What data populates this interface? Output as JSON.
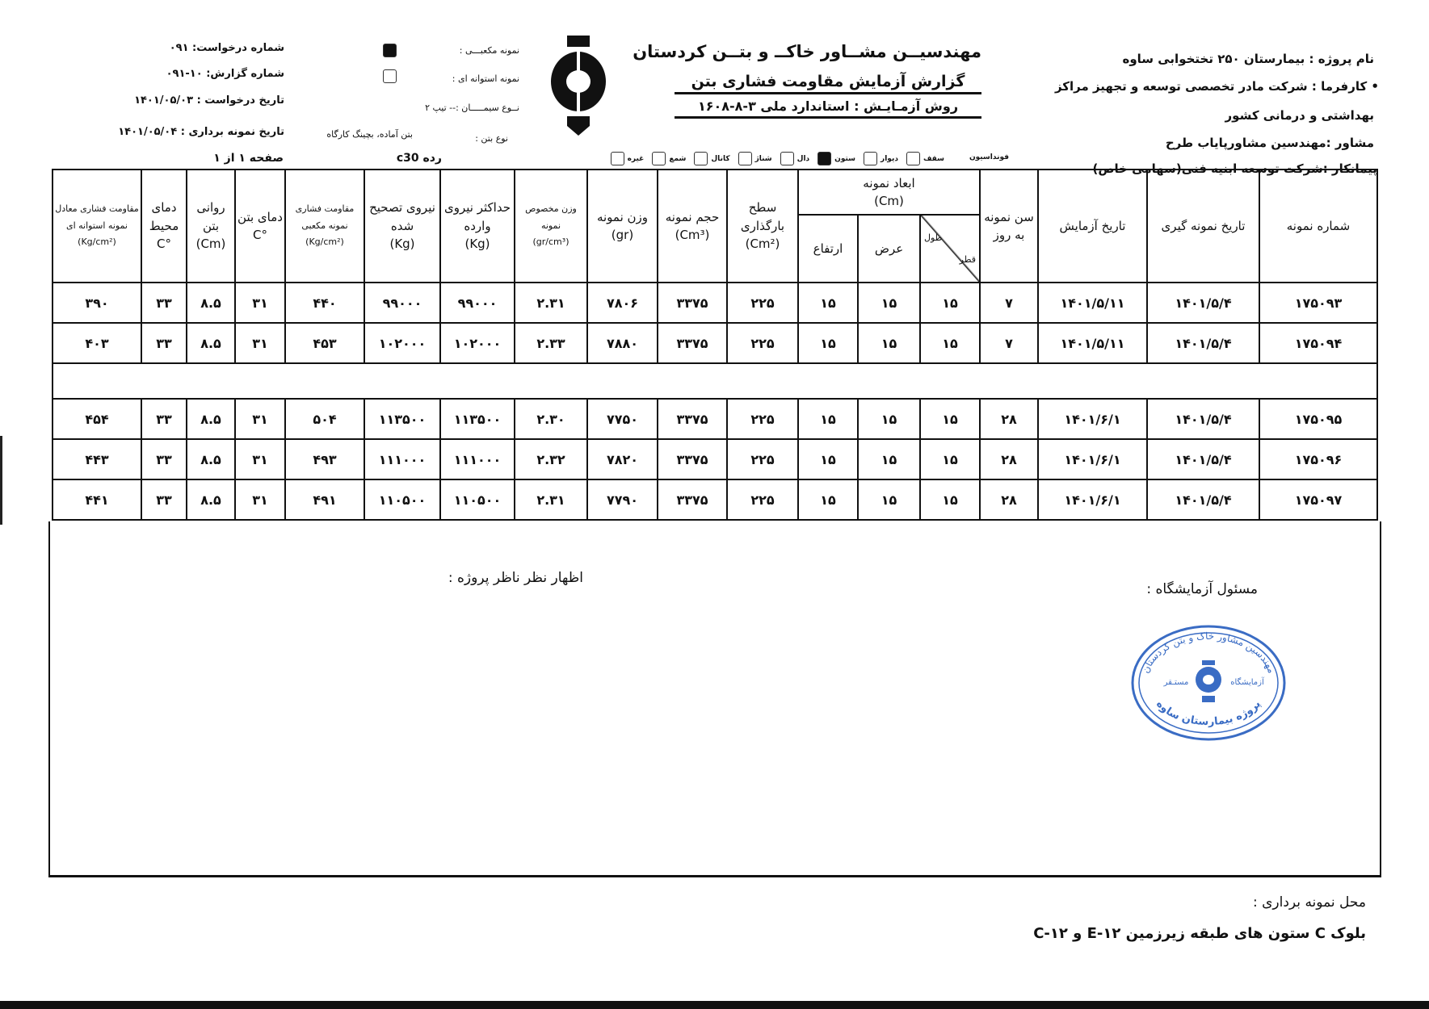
{
  "project_info": {
    "project_name": "نام پروژه : بیمارستان ۲۵۰ تختخوابی ساوه",
    "employer_line1": "• کارفرما : شرکت مادر تخصصی توسعه و تجهیز مراکز",
    "employer_line2": "بهداشتی و درمانی کشور",
    "consultant": "مشاور :مهندسین مشاورپایاب طرح",
    "contractor": "پیمانکار :شرکت توسعه ابنیه فنی(سهامی خاص)"
  },
  "title_block": {
    "company": "مهندسیــن مشــاور خاکــ و بتــن کردستان",
    "report_title": "گزارش آزمایش مقاومت فشاری بتن",
    "method": "روش آزمـایـش : استاندارد ملی ۳-۸-۱۶۰۸"
  },
  "sample_info": {
    "cube_label": "نمونه مکعبـــی :",
    "cube_checked": true,
    "cylinder_label": "نمونه استوانه ای :",
    "cylinder_checked": false,
    "cement_type": "نــوع سیمـــــان :-- تیپ ۲",
    "concrete_type_label": "نوع بتن :",
    "concrete_type_value": "بتن آماده، بچینگ کارگاه"
  },
  "request_info": {
    "request_no": "شماره درخواست:  ۰۹۱",
    "report_no": "شماره گزارش:  ۱۰-۰۹۱",
    "request_date": "تاریخ درخواست : ۱۴۰۱/۰۵/۰۳",
    "sampling_date": "تاریخ نمونه برداری : ۱۴۰۱/۰۵/۰۴",
    "page": "صفحه ۱ از ۱",
    "grade": "رده  c30"
  },
  "element_types": {
    "foundation": "فونداسیون",
    "items": [
      {
        "label": "سقف",
        "checked": false
      },
      {
        "label": "دیوار",
        "checked": false
      },
      {
        "label": "ستون",
        "checked": true
      },
      {
        "label": "دال",
        "checked": false
      },
      {
        "label": "شناژ",
        "checked": false
      },
      {
        "label": "کانال",
        "checked": false
      },
      {
        "label": "شمع",
        "checked": false
      },
      {
        "label": "غیره",
        "checked": false
      }
    ]
  },
  "table": {
    "headers": {
      "sample_no": "شماره نمونه",
      "sampling_date": "تاریخ نمونه گیری",
      "test_date": "تاریخ آزمایش",
      "age": "سن نمونه به روز",
      "dimensions": "ابعاد نمونه",
      "dimensions_unit": "(Cm)",
      "length": "طول",
      "diameter": "قطر",
      "width": "عرض",
      "height": "ارتفاع",
      "area": "سطح بارگذاری",
      "area_unit": "(Cm²)",
      "volume": "حجم نمونه",
      "volume_unit": "(Cm³)",
      "weight": "وزن نمونه",
      "weight_unit": "(gr)",
      "density": "وزن مخصوص نمونه",
      "density_unit": "(gr/cm³)",
      "max_force": "حداکثر نیروی وارده",
      "max_force_unit": "(Kg)",
      "corrected_force": "نیروی تصحیح شده",
      "corrected_force_unit": "(Kg)",
      "cube_strength": "مقاومت فشاری نمونه مکعبی",
      "cube_strength_unit": "(Kg/cm²)",
      "concrete_temp": "دمای بتن",
      "concrete_temp_unit": "°C",
      "slump": "روانی بتن",
      "slump_unit": "(Cm)",
      "ambient_temp": "دمای محیط",
      "ambient_temp_unit": "°C",
      "cylinder_strength": "مقاومت فشاری معادل نمونه استوانه ای",
      "cylinder_strength_unit": "(Kg/cm²)"
    },
    "rows": [
      [
        "۱۷۵۰۹۳",
        "۱۴۰۱/۵/۴",
        "۱۴۰۱/۵/۱۱",
        "۷",
        "۱۵",
        "۱۵",
        "۱۵",
        "۲۲۵",
        "۳۳۷۵",
        "۷۸۰۶",
        "۲.۳۱",
        "۹۹۰۰۰",
        "۹۹۰۰۰",
        "۴۴۰",
        "۳۱",
        "۸.۵",
        "۳۳",
        "۳۹۰"
      ],
      [
        "۱۷۵۰۹۴",
        "۱۴۰۱/۵/۴",
        "۱۴۰۱/۵/۱۱",
        "۷",
        "۱۵",
        "۱۵",
        "۱۵",
        "۲۲۵",
        "۳۳۷۵",
        "۷۸۸۰",
        "۲.۳۳",
        "۱۰۲۰۰۰",
        "۱۰۲۰۰۰",
        "۴۵۳",
        "۳۱",
        "۸.۵",
        "۳۳",
        "۴۰۳"
      ],
      null,
      [
        "۱۷۵۰۹۵",
        "۱۴۰۱/۵/۴",
        "۱۴۰۱/۶/۱",
        "۲۸",
        "۱۵",
        "۱۵",
        "۱۵",
        "۲۲۵",
        "۳۳۷۵",
        "۷۷۵۰",
        "۲.۳۰",
        "۱۱۳۵۰۰",
        "۱۱۳۵۰۰",
        "۵۰۴",
        "۳۱",
        "۸.۵",
        "۳۳",
        "۴۵۴"
      ],
      [
        "۱۷۵۰۹۶",
        "۱۴۰۱/۵/۴",
        "۱۴۰۱/۶/۱",
        "۲۸",
        "۱۵",
        "۱۵",
        "۱۵",
        "۲۲۵",
        "۳۳۷۵",
        "۷۸۲۰",
        "۲.۳۲",
        "۱۱۱۰۰۰",
        "۱۱۱۰۰۰",
        "۴۹۳",
        "۳۱",
        "۸.۵",
        "۳۳",
        "۴۴۳"
      ],
      [
        "۱۷۵۰۹۷",
        "۱۴۰۱/۵/۴",
        "۱۴۰۱/۶/۱",
        "۲۸",
        "۱۵",
        "۱۵",
        "۱۵",
        "۲۲۵",
        "۳۳۷۵",
        "۷۷۹۰",
        "۲.۳۱",
        "۱۱۰۵۰۰",
        "۱۱۰۵۰۰",
        "۴۹۱",
        "۳۱",
        "۸.۵",
        "۳۳",
        "۴۴۱"
      ]
    ]
  },
  "signatures": {
    "lab_manager": "مسئول آزمایشگاه :",
    "supervisor_comment": "اظهار نظر ناظر پروژه :"
  },
  "stamp": {
    "top": "مهندسین مشاور خاک و بتن کردستان",
    "left": "مستـقر",
    "right": "آزمایشگاه",
    "bottom": "پروژه بیمارستان ساوه",
    "color": "#3a6cc4"
  },
  "footer": {
    "location_label": "محل نمونه برداری :",
    "location_value": "بلوک  C  ستون های طبقه زیرزمین  ۱۲-E و ۱۲-C"
  }
}
